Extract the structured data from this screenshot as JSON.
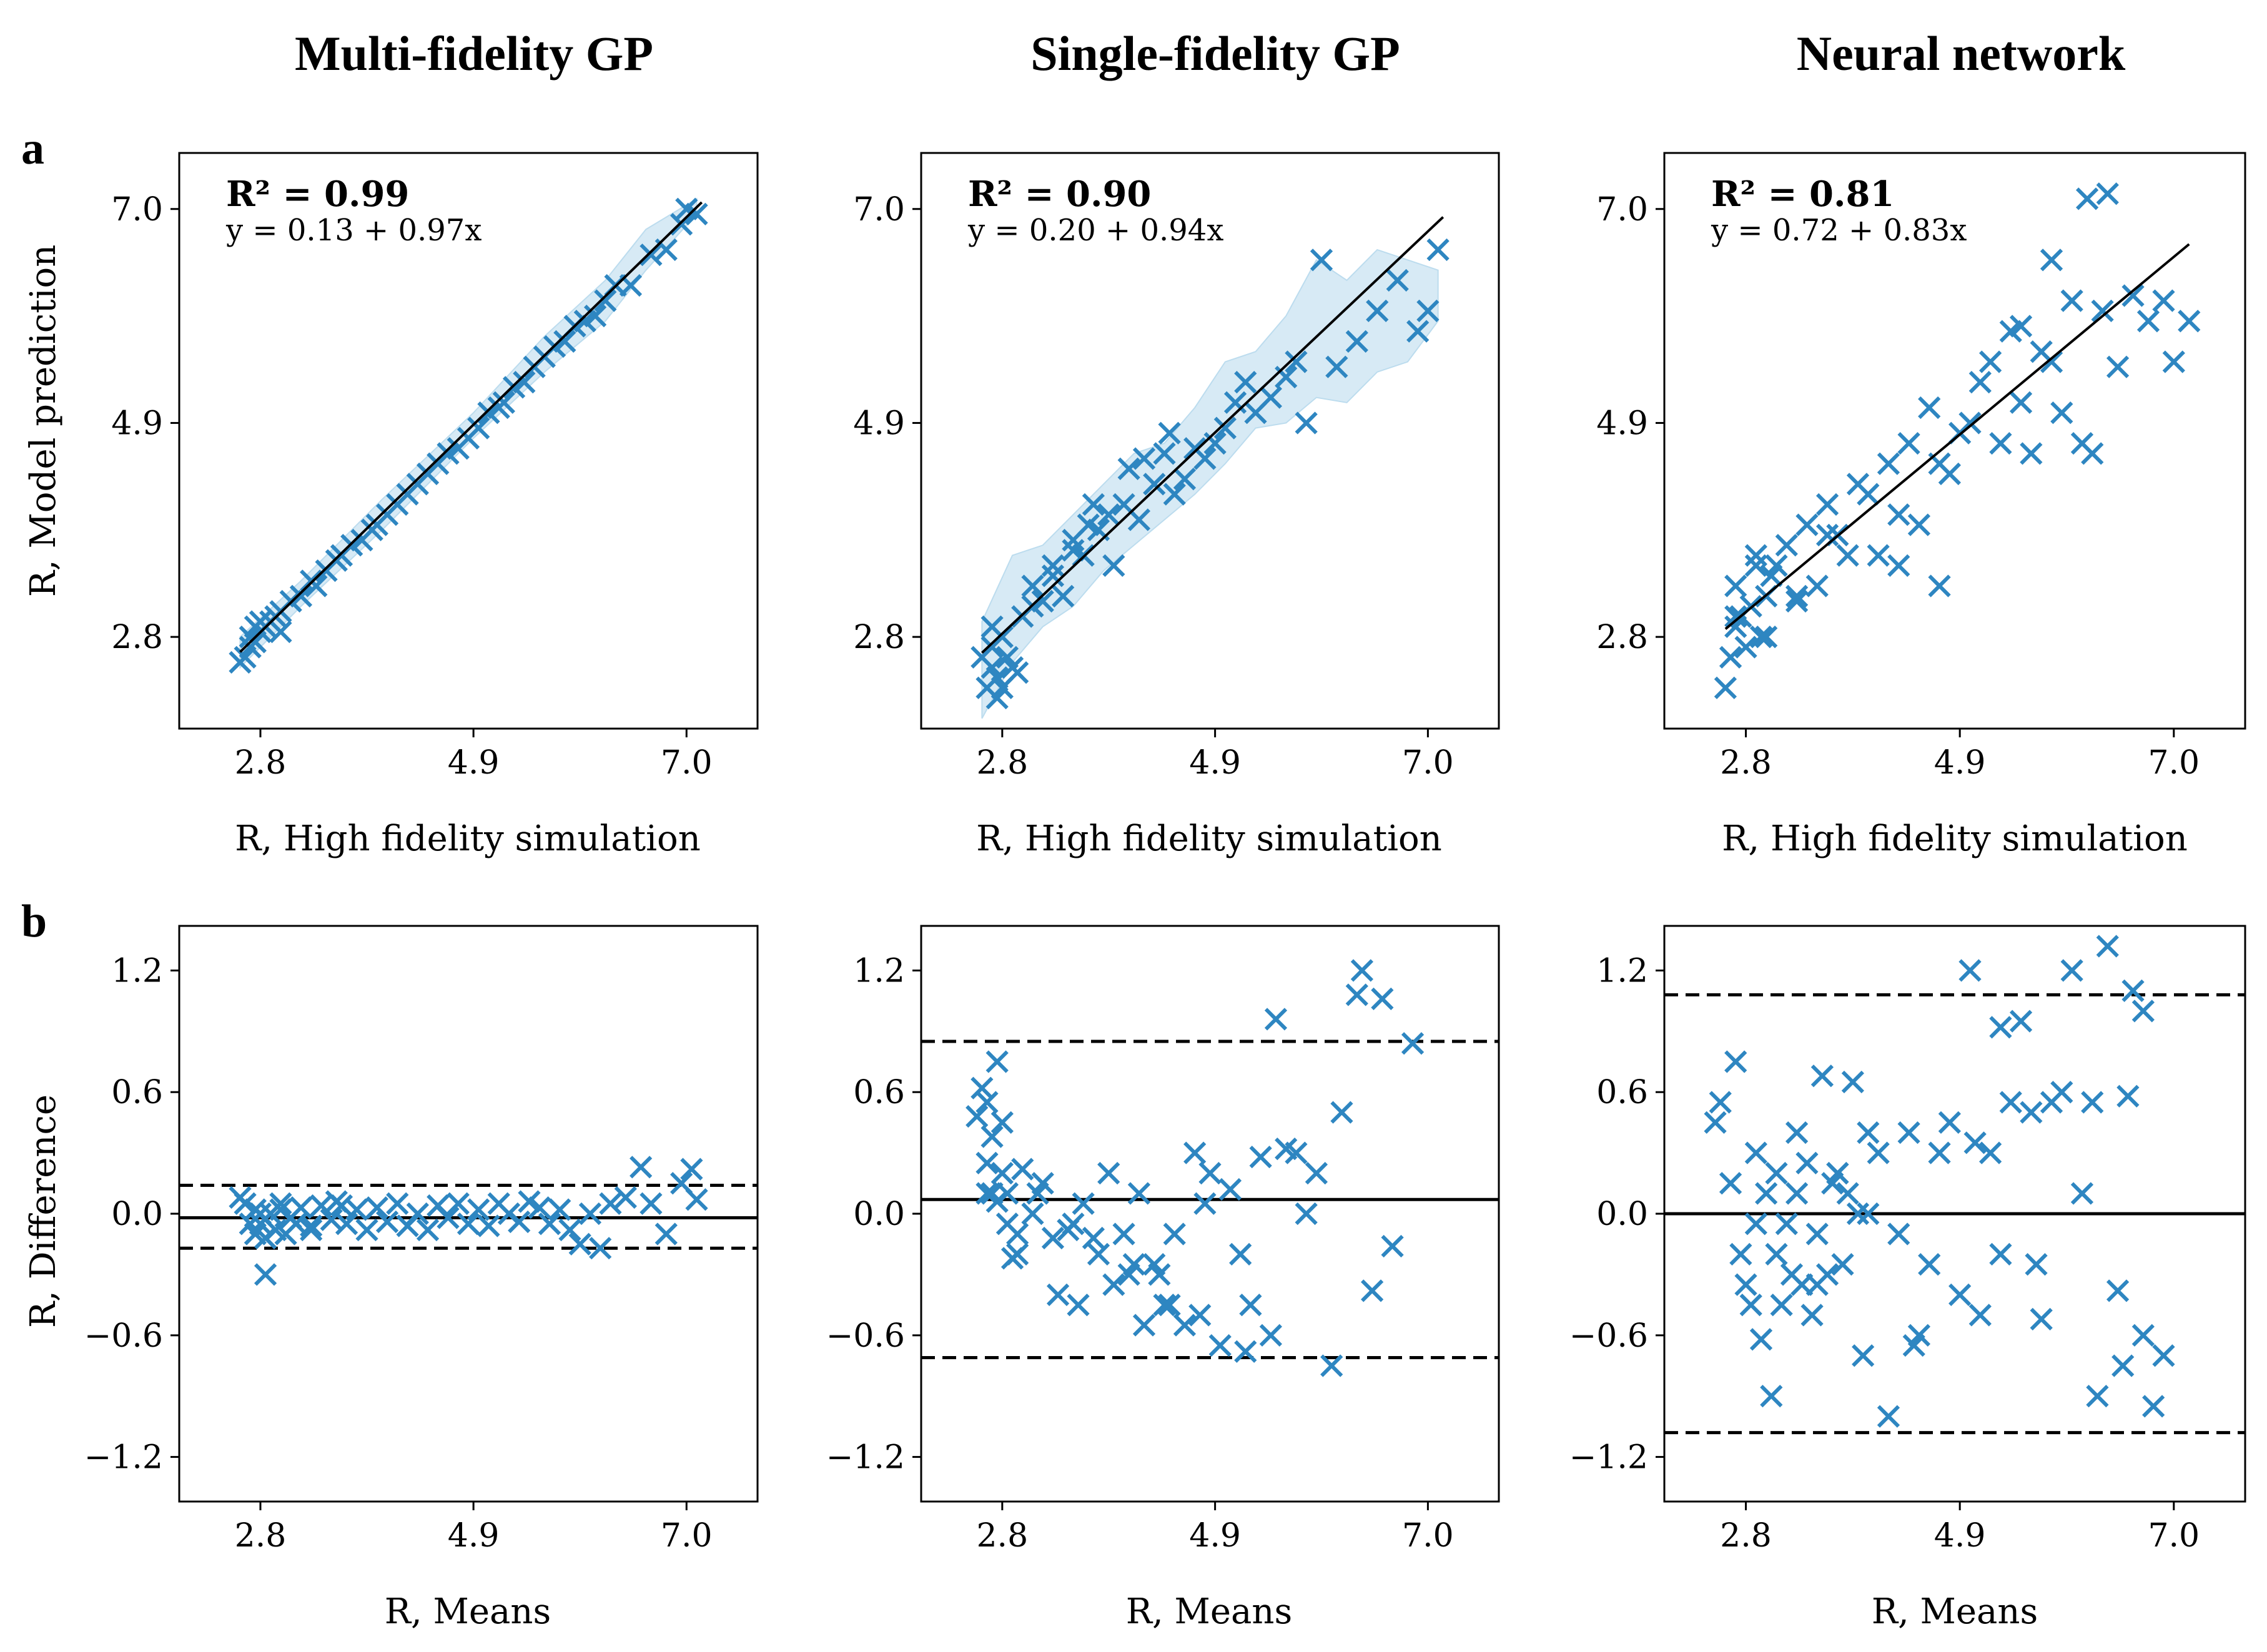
{
  "colors": {
    "marker": "#2e86c1",
    "band": "#bcdcee",
    "line": "#000000"
  },
  "panel_letters": [
    "a",
    "b"
  ],
  "columns": [
    "Multi-fidelity GP",
    "Single-fidelity GP",
    "Neural network"
  ],
  "axis_labels": {
    "row_a_x": "R, High fidelity simulation",
    "row_a_y": "R, Model prediction",
    "row_b_x": "R, Means",
    "row_b_y": "R, Difference"
  },
  "chart_data": [
    {
      "id": "a1",
      "type": "scatter",
      "row": "a",
      "column": "Multi-fidelity GP",
      "r2_label": "R² = 0.99",
      "equation": "y = 0.13 + 0.97x",
      "fit": {
        "intercept": 0.13,
        "slope": 0.97,
        "x_range": [
          2.6,
          7.15
        ]
      },
      "xlim": [
        2.0,
        7.7
      ],
      "ylim": [
        1.9,
        7.55
      ],
      "xticks": [
        2.8,
        4.9,
        7.0
      ],
      "yticks": [
        2.8,
        4.9,
        7.0
      ],
      "xtick_labels": [
        "2.8",
        "4.9",
        "7.0"
      ],
      "ytick_labels": [
        "2.8",
        "4.9",
        "7.0"
      ],
      "band": {
        "x": [
          2.6,
          3.2,
          4.0,
          4.9,
          5.6,
          6.2,
          6.6,
          7.1
        ],
        "upper": [
          2.8,
          3.35,
          4.15,
          5.0,
          5.75,
          6.3,
          6.8,
          7.1
        ],
        "lower": [
          2.5,
          3.1,
          3.85,
          4.75,
          5.4,
          5.9,
          6.4,
          6.95
        ]
      },
      "x": [
        2.6,
        2.65,
        2.7,
        2.7,
        2.75,
        2.75,
        2.8,
        2.85,
        2.9,
        2.95,
        3.0,
        3.1,
        3.2,
        3.3,
        3.35,
        3.45,
        3.55,
        3.6,
        3.7,
        3.8,
        3.9,
        3.95,
        4.05,
        4.15,
        4.25,
        4.35,
        4.45,
        4.55,
        4.65,
        4.75,
        4.85,
        4.95,
        5.05,
        5.15,
        5.2,
        5.3,
        5.4,
        5.5,
        5.6,
        5.7,
        5.8,
        5.9,
        6.0,
        6.1,
        6.2,
        6.3,
        6.45,
        6.65,
        6.8,
        6.95,
        7.0,
        7.1,
        2.8,
        3.0
      ],
      "y": [
        2.55,
        2.6,
        2.7,
        2.8,
        2.75,
        2.9,
        2.85,
        2.9,
        2.95,
        3.0,
        3.05,
        3.15,
        3.2,
        3.35,
        3.3,
        3.45,
        3.55,
        3.6,
        3.7,
        3.75,
        3.85,
        3.9,
        4.0,
        4.1,
        4.2,
        4.3,
        4.4,
        4.5,
        4.6,
        4.65,
        4.75,
        4.85,
        5.0,
        5.05,
        5.1,
        5.25,
        5.3,
        5.45,
        5.55,
        5.65,
        5.7,
        5.85,
        5.9,
        5.95,
        6.1,
        6.25,
        6.25,
        6.55,
        6.6,
        6.85,
        7.0,
        6.95,
        2.95,
        2.85
      ]
    },
    {
      "id": "a2",
      "type": "scatter",
      "row": "a",
      "column": "Single-fidelity GP",
      "r2_label": "R² = 0.90",
      "equation": "y = 0.20 + 0.94x",
      "fit": {
        "intercept": 0.2,
        "slope": 0.94,
        "x_range": [
          2.6,
          7.15
        ]
      },
      "xlim": [
        2.0,
        7.7
      ],
      "ylim": [
        1.9,
        7.55
      ],
      "xticks": [
        2.8,
        4.9,
        7.0
      ],
      "yticks": [
        2.8,
        4.9,
        7.0
      ],
      "xtick_labels": [
        "2.8",
        "4.9",
        "7.0"
      ],
      "ytick_labels": [
        "2.8",
        "4.9",
        "7.0"
      ],
      "band": {
        "x": [
          2.6,
          2.9,
          3.2,
          3.5,
          3.8,
          4.1,
          4.4,
          4.7,
          5.0,
          5.3,
          5.6,
          5.9,
          6.2,
          6.5,
          6.8,
          7.1
        ],
        "upper": [
          2.95,
          3.6,
          3.7,
          4.0,
          4.3,
          4.6,
          4.7,
          5.05,
          5.5,
          5.6,
          5.95,
          6.5,
          6.3,
          6.6,
          6.5,
          6.4
        ],
        "lower": [
          2.0,
          2.55,
          2.9,
          3.1,
          3.45,
          3.7,
          3.95,
          4.2,
          4.5,
          4.85,
          4.9,
          5.15,
          5.1,
          5.4,
          5.5,
          5.9
        ]
      },
      "x": [
        2.6,
        2.65,
        2.7,
        2.7,
        2.75,
        2.75,
        2.8,
        2.85,
        2.9,
        2.95,
        2.8,
        2.7,
        3.0,
        3.1,
        3.2,
        3.3,
        3.4,
        3.5,
        3.6,
        3.65,
        3.75,
        3.85,
        3.9,
        4.0,
        4.05,
        4.15,
        4.2,
        4.3,
        4.4,
        4.45,
        4.5,
        4.6,
        4.7,
        4.8,
        4.9,
        5.0,
        5.1,
        5.2,
        5.3,
        5.45,
        5.6,
        5.7,
        5.8,
        5.95,
        6.1,
        6.3,
        6.5,
        6.7,
        6.9,
        7.0,
        7.1,
        3.1,
        3.3,
        3.5,
        3.7
      ],
      "y": [
        2.6,
        2.3,
        2.5,
        2.7,
        2.4,
        2.2,
        2.8,
        2.6,
        2.5,
        2.45,
        2.3,
        2.9,
        3.0,
        3.3,
        3.15,
        3.4,
        3.2,
        3.75,
        3.6,
        3.9,
        3.85,
        4.0,
        3.5,
        4.1,
        4.45,
        3.95,
        4.55,
        4.3,
        4.6,
        4.8,
        4.2,
        4.35,
        4.65,
        4.55,
        4.7,
        4.85,
        5.1,
        5.3,
        5.0,
        5.15,
        5.35,
        5.5,
        4.9,
        6.5,
        5.45,
        5.7,
        6.0,
        6.3,
        5.8,
        6.0,
        6.6,
        3.1,
        3.5,
        3.65,
        4.1
      ]
    },
    {
      "id": "a3",
      "type": "scatter",
      "row": "a",
      "column": "Neural network",
      "r2_label": "R² = 0.81",
      "equation": "y = 0.72 + 0.83x",
      "fit": {
        "intercept": 0.72,
        "slope": 0.83,
        "x_range": [
          2.6,
          7.15
        ]
      },
      "xlim": [
        2.0,
        7.7
      ],
      "ylim": [
        1.9,
        7.55
      ],
      "xticks": [
        2.8,
        4.9,
        7.0
      ],
      "yticks": [
        2.8,
        4.9,
        7.0
      ],
      "xtick_labels": [
        "2.8",
        "4.9",
        "7.0"
      ],
      "ytick_labels": [
        "2.8",
        "4.9",
        "7.0"
      ],
      "x": [
        2.6,
        2.65,
        2.7,
        2.7,
        2.75,
        2.8,
        2.85,
        2.9,
        2.95,
        3.0,
        3.05,
        2.7,
        2.9,
        3.1,
        3.2,
        3.3,
        3.4,
        3.5,
        3.6,
        3.7,
        3.8,
        3.9,
        4.0,
        4.1,
        4.2,
        4.3,
        4.4,
        4.5,
        4.6,
        4.7,
        4.8,
        4.9,
        5.0,
        5.1,
        5.2,
        5.3,
        5.4,
        5.5,
        5.6,
        5.7,
        5.8,
        5.9,
        6.0,
        6.1,
        6.2,
        6.3,
        6.45,
        6.6,
        6.75,
        6.9,
        7.0,
        7.15,
        5.8,
        6.15,
        6.35,
        3.0,
        3.3,
        3.6,
        4.3,
        4.7,
        5.5
      ],
      "y": [
        2.3,
        2.6,
        2.9,
        3.3,
        3.0,
        2.7,
        3.1,
        3.5,
        2.8,
        3.2,
        3.4,
        3.0,
        3.6,
        3.5,
        3.7,
        3.15,
        3.9,
        3.3,
        4.1,
        3.8,
        3.6,
        4.3,
        4.2,
        3.6,
        4.5,
        4.0,
        4.7,
        3.9,
        5.05,
        4.5,
        4.4,
        4.8,
        4.9,
        5.3,
        5.5,
        4.7,
        5.8,
        5.1,
        4.6,
        5.6,
        5.5,
        5.0,
        6.1,
        4.7,
        4.6,
        6.0,
        5.45,
        6.15,
        5.9,
        6.1,
        5.5,
        5.9,
        6.5,
        7.1,
        7.15,
        2.8,
        3.2,
        3.8,
        3.5,
        3.3,
        5.85
      ]
    },
    {
      "id": "b1",
      "type": "scatter",
      "row": "b",
      "column": "Multi-fidelity GP",
      "xlim": [
        2.0,
        7.7
      ],
      "ylim": [
        -1.42,
        1.42
      ],
      "xticks": [
        2.8,
        4.9,
        7.0
      ],
      "yticks": [
        1.2,
        0.6,
        0.0,
        -0.6,
        -1.2
      ],
      "xtick_labels": [
        "2.8",
        "4.9",
        "7.0"
      ],
      "ytick_labels": [
        "1.2",
        "0.6",
        "0.0",
        "−0.6",
        "−1.2"
      ],
      "hlines": {
        "solid": -0.02,
        "dashed": [
          0.14,
          -0.17
        ]
      },
      "x": [
        2.6,
        2.65,
        2.7,
        2.75,
        2.75,
        2.8,
        2.85,
        2.85,
        2.9,
        2.95,
        3.0,
        3.05,
        3.1,
        3.15,
        3.2,
        3.3,
        3.4,
        3.5,
        3.55,
        3.65,
        3.75,
        3.85,
        3.95,
        4.05,
        4.15,
        4.25,
        4.35,
        4.45,
        4.55,
        4.65,
        4.75,
        4.85,
        4.95,
        5.05,
        5.15,
        5.25,
        5.35,
        5.45,
        5.55,
        5.65,
        5.75,
        5.85,
        5.95,
        6.05,
        6.15,
        6.25,
        6.4,
        6.55,
        6.65,
        6.8,
        6.95,
        7.05,
        7.1,
        2.8,
        3.0,
        3.3,
        3.6
      ],
      "y": [
        0.08,
        0.05,
        -0.05,
        0.02,
        -0.1,
        -0.05,
        -0.3,
        -0.12,
        0.0,
        -0.08,
        0.05,
        -0.1,
        -0.02,
        -0.05,
        0.03,
        -0.08,
        0.04,
        -0.03,
        0.06,
        -0.05,
        0.02,
        -0.08,
        0.03,
        -0.04,
        0.05,
        -0.06,
        0.0,
        -0.08,
        0.04,
        -0.02,
        0.05,
        -0.05,
        0.02,
        -0.06,
        0.05,
        0.0,
        -0.04,
        0.06,
        0.03,
        -0.05,
        0.02,
        -0.08,
        -0.15,
        0.0,
        -0.17,
        0.05,
        0.08,
        0.23,
        0.05,
        -0.1,
        0.15,
        0.22,
        0.07,
        0.0,
        0.02,
        -0.06,
        0.04
      ]
    },
    {
      "id": "b2",
      "type": "scatter",
      "row": "b",
      "column": "Single-fidelity GP",
      "xlim": [
        2.0,
        7.7
      ],
      "ylim": [
        -1.42,
        1.42
      ],
      "xticks": [
        2.8,
        4.9,
        7.0
      ],
      "yticks": [
        1.2,
        0.6,
        0.0,
        -0.6,
        -1.2
      ],
      "xtick_labels": [
        "2.8",
        "4.9",
        "7.0"
      ],
      "ytick_labels": [
        "1.2",
        "0.6",
        "0.0",
        "−0.6",
        "−1.2"
      ],
      "hlines": {
        "solid": 0.07,
        "dashed": [
          0.85,
          -0.71
        ]
      },
      "x": [
        2.55,
        2.6,
        2.65,
        2.65,
        2.7,
        2.7,
        2.75,
        2.75,
        2.8,
        2.8,
        2.85,
        2.85,
        2.9,
        2.95,
        3.0,
        3.1,
        3.2,
        3.3,
        3.35,
        3.45,
        3.55,
        3.6,
        3.7,
        3.75,
        3.85,
        3.9,
        4.0,
        4.05,
        4.15,
        4.2,
        4.3,
        4.35,
        4.45,
        4.5,
        4.6,
        4.7,
        4.75,
        4.85,
        4.95,
        5.05,
        5.15,
        5.25,
        5.35,
        5.45,
        5.5,
        5.6,
        5.7,
        5.8,
        5.9,
        6.05,
        6.15,
        6.3,
        6.35,
        6.45,
        6.55,
        6.65,
        6.85,
        2.65,
        2.95,
        3.15,
        3.5,
        4.1,
        4.4,
        4.8,
        5.2
      ],
      "y": [
        0.48,
        0.62,
        0.25,
        0.55,
        0.1,
        0.38,
        0.06,
        0.75,
        0.2,
        0.45,
        -0.05,
        0.1,
        -0.22,
        -0.1,
        0.22,
        0.0,
        0.15,
        -0.12,
        -0.4,
        -0.08,
        -0.45,
        0.05,
        -0.12,
        -0.2,
        0.2,
        -0.35,
        -0.1,
        -0.3,
        0.1,
        -0.55,
        -0.25,
        -0.3,
        -0.45,
        -0.1,
        -0.55,
        0.3,
        -0.5,
        0.2,
        -0.65,
        0.12,
        -0.2,
        -0.45,
        0.28,
        -0.6,
        0.96,
        0.32,
        0.3,
        0.0,
        0.2,
        -0.75,
        0.5,
        1.08,
        1.2,
        -0.38,
        1.06,
        -0.16,
        0.84,
        0.1,
        -0.2,
        0.1,
        -0.05,
        -0.25,
        -0.45,
        0.05,
        -0.68
      ]
    },
    {
      "id": "b3",
      "type": "scatter",
      "row": "b",
      "column": "Neural network",
      "xlim": [
        2.0,
        7.7
      ],
      "ylim": [
        -1.42,
        1.42
      ],
      "xticks": [
        2.8,
        4.9,
        7.0
      ],
      "yticks": [
        1.2,
        0.6,
        0.0,
        -0.6,
        -1.2
      ],
      "xtick_labels": [
        "2.8",
        "4.9",
        "7.0"
      ],
      "ytick_labels": [
        "1.2",
        "0.6",
        "0.0",
        "−0.6",
        "−1.2"
      ],
      "hlines": {
        "solid": 0.0,
        "dashed": [
          1.08,
          -1.08
        ]
      },
      "x": [
        2.5,
        2.55,
        2.65,
        2.7,
        2.75,
        2.8,
        2.85,
        2.9,
        2.95,
        3.0,
        3.05,
        3.1,
        3.15,
        3.2,
        3.25,
        3.3,
        3.35,
        3.4,
        3.45,
        3.5,
        3.55,
        3.6,
        3.65,
        3.7,
        3.75,
        3.8,
        3.85,
        3.9,
        3.95,
        4.0,
        4.1,
        4.2,
        4.3,
        4.4,
        4.5,
        4.6,
        4.7,
        4.8,
        4.9,
        5.0,
        5.1,
        5.2,
        5.3,
        5.4,
        5.5,
        5.6,
        5.7,
        5.8,
        5.9,
        6.0,
        6.1,
        6.2,
        6.35,
        6.5,
        6.6,
        6.7,
        6.8,
        6.9,
        2.9,
        3.1,
        3.3,
        3.5,
        3.7,
        4.0,
        4.45,
        5.05,
        5.3,
        5.65,
        6.25,
        6.45,
        6.55,
        6.7
      ],
      "y": [
        0.45,
        0.55,
        0.15,
        0.75,
        -0.2,
        -0.35,
        -0.45,
        0.3,
        -0.62,
        0.1,
        -0.9,
        0.2,
        -0.45,
        -0.05,
        -0.3,
        0.4,
        -0.35,
        0.25,
        -0.5,
        -0.1,
        0.68,
        -0.3,
        0.15,
        0.2,
        -0.25,
        0.1,
        0.65,
        0.0,
        -0.7,
        0.4,
        0.3,
        -1.0,
        -0.1,
        0.4,
        -0.6,
        -0.25,
        0.3,
        0.45,
        -0.4,
        1.2,
        -0.5,
        0.3,
        -0.2,
        0.55,
        0.95,
        0.5,
        -0.52,
        0.55,
        0.6,
        1.2,
        0.1,
        0.55,
        1.32,
        -0.75,
        1.1,
        1.0,
        -0.95,
        -0.7,
        -0.05,
        -0.2,
        0.1,
        -0.35,
        0.2,
        0.0,
        -0.65,
        0.35,
        0.92,
        -0.25,
        -0.9,
        -0.38,
        0.58,
        -0.6
      ]
    }
  ]
}
